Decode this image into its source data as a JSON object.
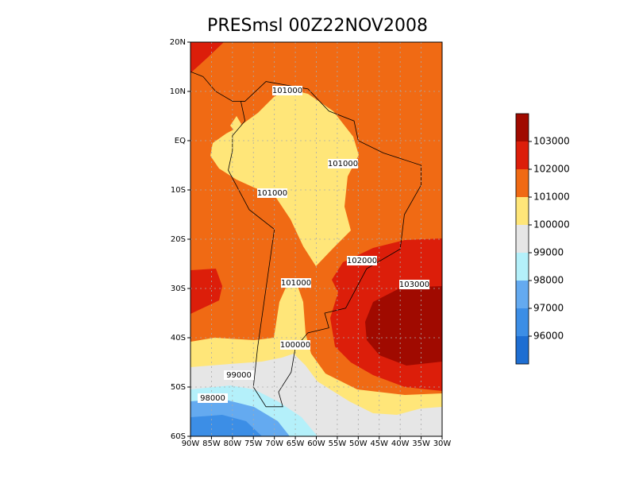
{
  "chart_data": {
    "type": "map",
    "title": "PRESmsl 00Z22NOV2008",
    "xlim": [
      -90,
      -30
    ],
    "ylim": [
      -60,
      20
    ],
    "xticks": [
      {
        "value": -90,
        "label": "90W"
      },
      {
        "value": -85,
        "label": "85W"
      },
      {
        "value": -80,
        "label": "80W"
      },
      {
        "value": -75,
        "label": "75W"
      },
      {
        "value": -70,
        "label": "70W"
      },
      {
        "value": -65,
        "label": "65W"
      },
      {
        "value": -60,
        "label": "60W"
      },
      {
        "value": -55,
        "label": "55W"
      },
      {
        "value": -50,
        "label": "50W"
      },
      {
        "value": -45,
        "label": "45W"
      },
      {
        "value": -40,
        "label": "40W"
      },
      {
        "value": -35,
        "label": "35W"
      },
      {
        "value": -30,
        "label": "30W"
      }
    ],
    "yticks": [
      {
        "value": 20,
        "label": "20N"
      },
      {
        "value": 10,
        "label": "10N"
      },
      {
        "value": 0,
        "label": "EQ"
      },
      {
        "value": -10,
        "label": "10S"
      },
      {
        "value": -20,
        "label": "20S"
      },
      {
        "value": -30,
        "label": "30S"
      },
      {
        "value": -40,
        "label": "40S"
      },
      {
        "value": -50,
        "label": "50S"
      },
      {
        "value": -60,
        "label": "60S"
      }
    ],
    "grid": true,
    "contour_labels": [
      101000,
      101000,
      101000,
      102000,
      103000,
      101000,
      100000,
      99000,
      98000
    ],
    "colorbar": {
      "levels": [
        96000,
        97000,
        98000,
        99000,
        100000,
        101000,
        102000,
        103000
      ],
      "colors": [
        "#1e6ed2",
        "#3c8ee6",
        "#64aaf0",
        "#b4f0fa",
        "#e6e6e6",
        "#ffe679",
        "#f06a14",
        "#dc1e0a",
        "#a00a00"
      ]
    }
  }
}
